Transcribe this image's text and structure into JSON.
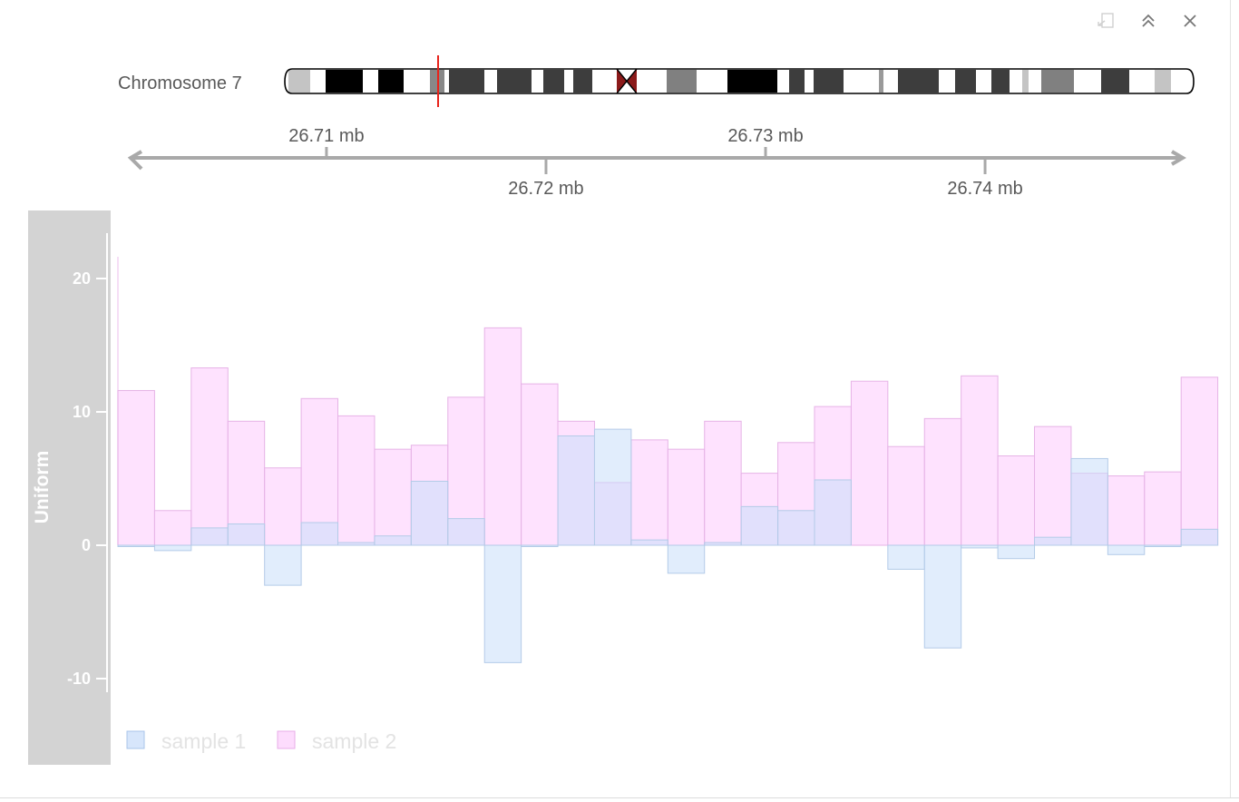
{
  "toolbar": {
    "icons": [
      "export-icon",
      "collapse-icon",
      "close-icon"
    ]
  },
  "ideogram": {
    "label": "Chromosome 7",
    "centromere_color": "#8b1a1a",
    "marker_color": "#e8231b"
  },
  "colors": {
    "sample1": "#c9defa",
    "sample2": "#fdd6fd",
    "panel_strip": "#d3d3d3",
    "axis_gray": "#a9a9a9"
  },
  "chart_data": {
    "type": "bar",
    "genome_axis": {
      "chromosome": "7",
      "unit": "mb",
      "xlim": [
        26.7005,
        26.7495
      ],
      "ticks": [
        26.71,
        26.72,
        26.73,
        26.74
      ],
      "tick_labels": [
        "26.71 mb",
        "26.72 mb",
        "26.73 mb",
        "26.74 mb"
      ]
    },
    "panel_label": "Uniform",
    "ylim": [
      -12,
      22
    ],
    "yticks": [
      -10,
      0,
      10,
      20
    ],
    "ytick_labels": [
      "-10",
      "0",
      "10",
      "20"
    ],
    "bin_start": 26.7005,
    "bin_width": 0.00167,
    "legend": [
      "sample 1",
      "sample 2"
    ],
    "legend_position": "bottom-left",
    "series": [
      {
        "name": "sample 1",
        "values": [
          -0.1,
          -0.4,
          1.3,
          1.6,
          -3.0,
          1.7,
          0.2,
          0.7,
          4.8,
          2.0,
          -8.8,
          -0.1,
          8.2,
          8.7,
          0.4,
          -2.1,
          0.2,
          2.9,
          2.6,
          4.9,
          0.0,
          -1.8,
          -7.7,
          -0.2,
          -1.0,
          0.6,
          6.5,
          -0.7,
          -0.1,
          1.2
        ]
      },
      {
        "name": "sample 2",
        "values": [
          11.6,
          2.6,
          13.3,
          9.3,
          5.8,
          11.0,
          9.7,
          7.2,
          7.5,
          11.1,
          16.3,
          12.1,
          9.3,
          4.7,
          7.9,
          7.2,
          9.3,
          5.4,
          7.7,
          10.4,
          12.3,
          7.4,
          9.5,
          12.7,
          6.7,
          8.9,
          5.4,
          5.2,
          5.5,
          12.6
        ]
      }
    ]
  }
}
